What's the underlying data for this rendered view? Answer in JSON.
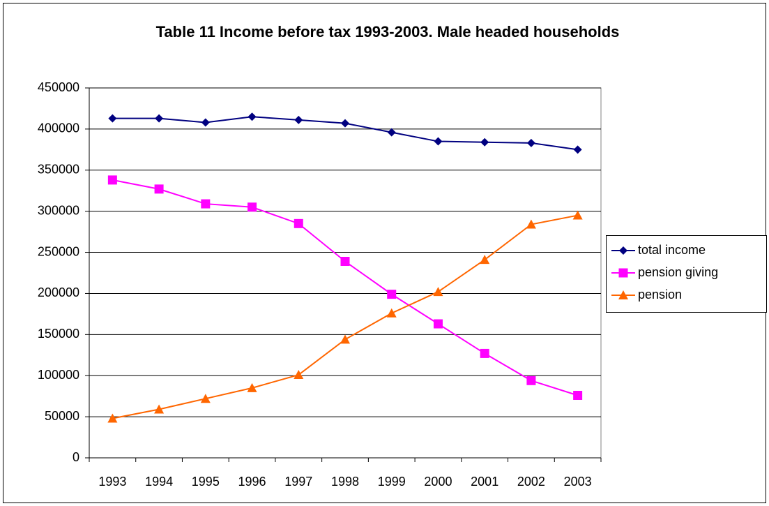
{
  "chart_data": {
    "type": "line",
    "title": "Table 11 Income before tax 1993-2003. Male headed households",
    "categories": [
      "1993",
      "1994",
      "1995",
      "1996",
      "1997",
      "1998",
      "1999",
      "2000",
      "2001",
      "2002",
      "2003"
    ],
    "series": [
      {
        "name": "total income",
        "color": "#000080",
        "marker": "diamond",
        "values": [
          413000,
          413000,
          408000,
          415000,
          411000,
          407000,
          396000,
          385000,
          384000,
          383000,
          375000
        ]
      },
      {
        "name": "pension giving",
        "color": "#ff00ff",
        "marker": "square",
        "values": [
          338000,
          327000,
          309000,
          305000,
          285000,
          239000,
          199000,
          163000,
          127000,
          94000,
          76000
        ]
      },
      {
        "name": "pension",
        "color": "#ff6600",
        "marker": "triangle",
        "values": [
          48000,
          59000,
          72000,
          85000,
          101000,
          144000,
          176000,
          202000,
          241000,
          284000,
          295000
        ]
      }
    ],
    "ylim": [
      0,
      450000
    ],
    "yticks": [
      0,
      50000,
      100000,
      150000,
      200000,
      250000,
      300000,
      350000,
      400000,
      450000
    ],
    "grid": true,
    "legend": "right"
  }
}
